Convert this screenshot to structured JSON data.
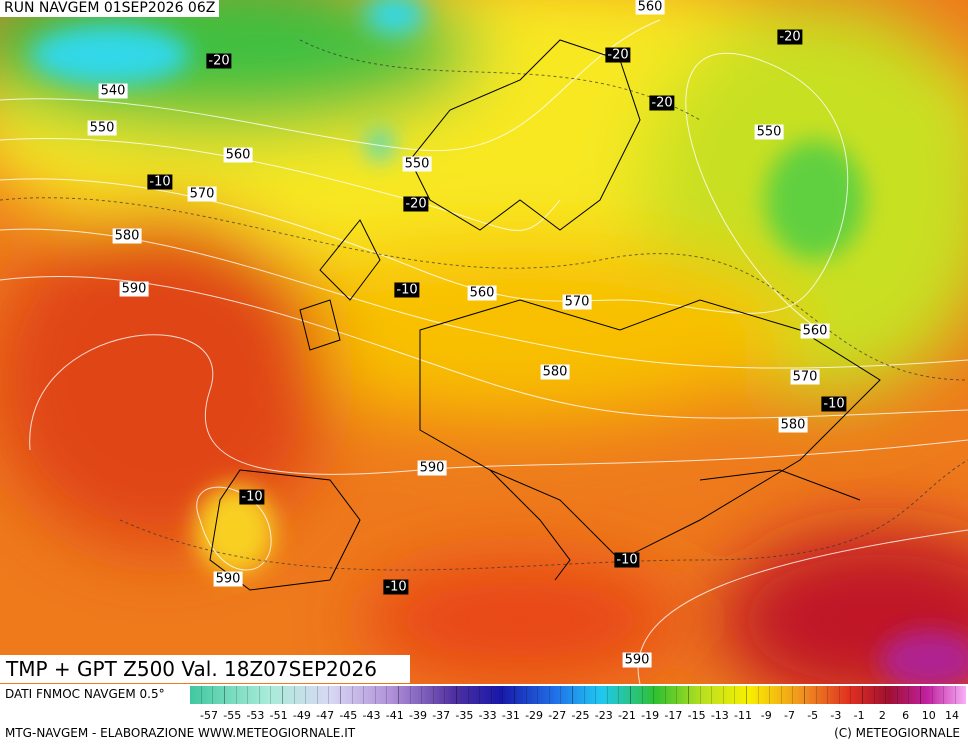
{
  "header": {
    "run": "RUN NAVGEM 01SEP2026 06Z",
    "product": "TMP + GPT Z500 Val. 18Z07SEP2026"
  },
  "contour_labels": [
    560,
    -20,
    540,
    550,
    560,
    -10,
    570,
    550,
    -20,
    580,
    590,
    -10,
    560,
    570,
    -20,
    -20,
    -20,
    550,
    560,
    570,
    -10,
    580,
    580,
    590,
    -10,
    590,
    -10,
    -10,
    590
  ],
  "legend": {
    "source": "DATI FNMOC NAVGEM 0.5°",
    "scale": [
      -57,
      -55,
      -53,
      -51,
      -49,
      -47,
      -45,
      -43,
      -41,
      -39,
      -37,
      -35,
      -33,
      -31,
      -29,
      -27,
      -25,
      -23,
      -21,
      -19,
      -17,
      -15,
      -13,
      -11,
      -9,
      -7,
      -5,
      -3,
      -1,
      2,
      6,
      10,
      14
    ]
  },
  "footer": {
    "left": "MTG-NAVGEM - ELABORAZIONE WWW.METEOGIORNALE.IT",
    "right": "(C) METEOGIORNALE"
  }
}
